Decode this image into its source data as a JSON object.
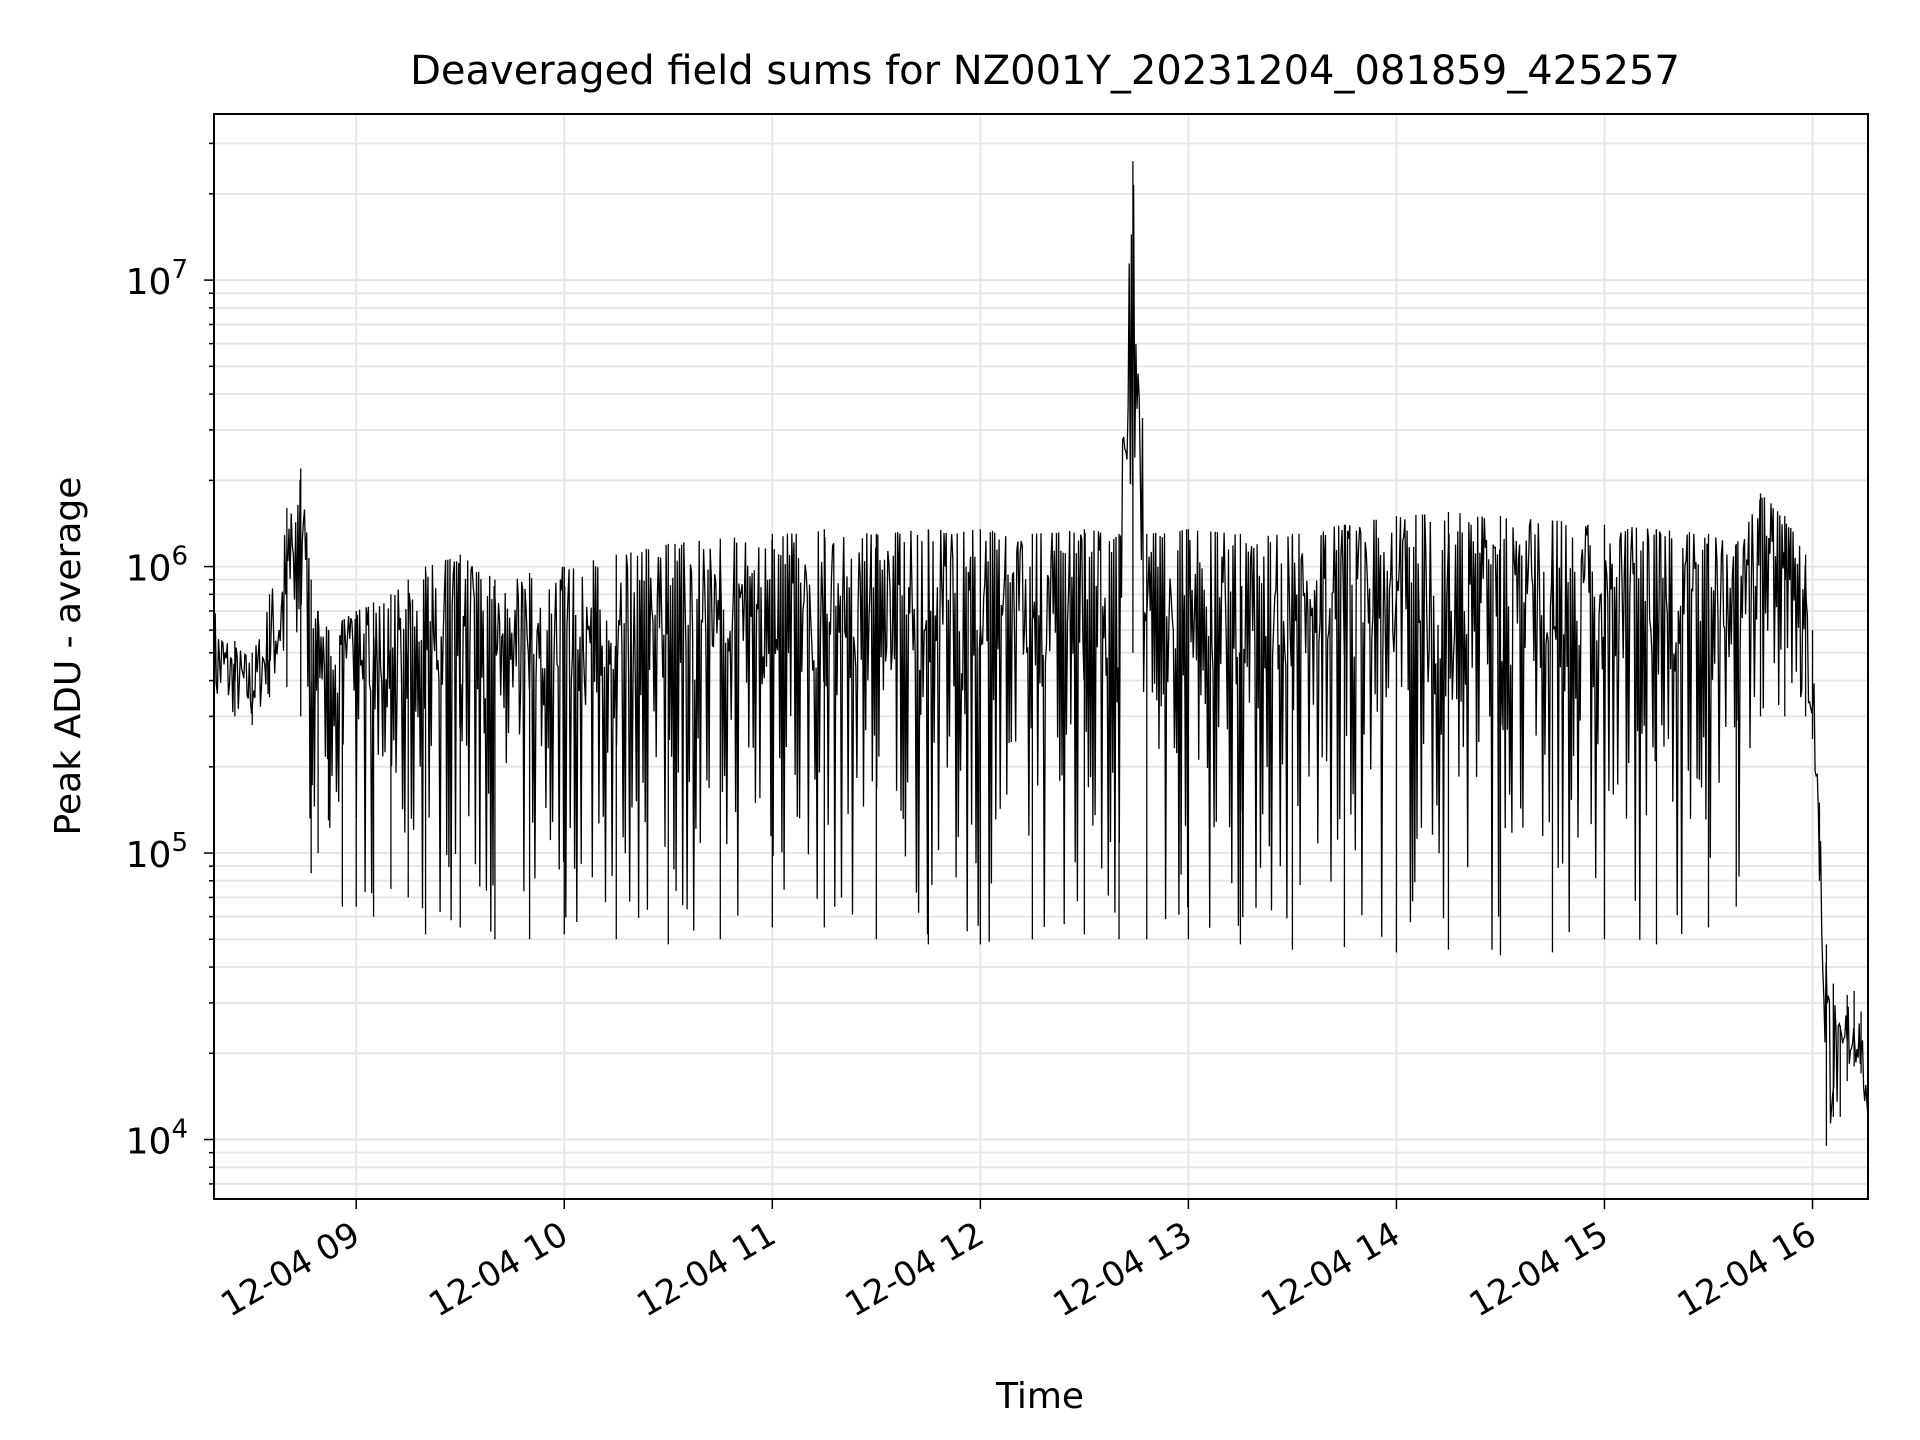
{
  "chart_data": {
    "type": "line",
    "title": "Deaveraged field sums for NZ001Y_20231204_081859_425257",
    "xlabel": "Time",
    "ylabel": "Peak ADU - average",
    "x_scale": "time",
    "y_scale": "log",
    "xlim": [
      "2023-12-04 08:18:59",
      "2023-12-04 16:16:00"
    ],
    "ylim": [
      6200,
      38000000
    ],
    "grid": true,
    "x_ticks": [
      "12-04 09",
      "12-04 10",
      "12-04 11",
      "12-04 12",
      "12-04 13",
      "12-04 14",
      "12-04 15",
      "12-04 16"
    ],
    "y_ticks": [
      {
        "value": 10000,
        "base": "10",
        "exp": "4"
      },
      {
        "value": 100000,
        "base": "10",
        "exp": "5"
      },
      {
        "value": 1000000,
        "base": "10",
        "exp": "6"
      },
      {
        "value": 10000000,
        "base": "10",
        "exp": "7"
      }
    ],
    "series": [
      {
        "color": "#000000",
        "x": [
          "2023-12-04 08:19",
          "2023-12-04 08:25",
          "2023-12-04 08:30",
          "2023-12-04 08:35",
          "2023-12-04 08:40",
          "2023-12-04 08:44",
          "2023-12-04 08:47",
          "2023-12-04 08:49",
          "2023-12-04 08:52",
          "2023-12-04 08:56",
          "2023-12-04 09:00",
          "2023-12-04 09:05",
          "2023-12-04 09:10",
          "2023-12-04 09:15",
          "2023-12-04 09:20",
          "2023-12-04 09:30",
          "2023-12-04 09:40",
          "2023-12-04 09:50",
          "2023-12-04 10:00",
          "2023-12-04 10:15",
          "2023-12-04 10:30",
          "2023-12-04 10:45",
          "2023-12-04 11:00",
          "2023-12-04 11:15",
          "2023-12-04 11:30",
          "2023-12-04 11:45",
          "2023-12-04 12:00",
          "2023-12-04 12:15",
          "2023-12-04 12:30",
          "2023-12-04 12:40",
          "2023-12-04 12:44",
          "2023-12-04 12:48",
          "2023-12-04 13:00",
          "2023-12-04 13:15",
          "2023-12-04 13:30",
          "2023-12-04 13:45",
          "2023-12-04 14:00",
          "2023-12-04 14:15",
          "2023-12-04 14:30",
          "2023-12-04 14:45",
          "2023-12-04 15:00",
          "2023-12-04 15:15",
          "2023-12-04 15:30",
          "2023-12-04 15:38",
          "2023-12-04 15:45",
          "2023-12-04 15:52",
          "2023-12-04 15:58",
          "2023-12-04 16:00",
          "2023-12-04 16:02",
          "2023-12-04 16:04",
          "2023-12-04 16:06",
          "2023-12-04 16:08",
          "2023-12-04 16:10",
          "2023-12-04 16:12",
          "2023-12-04 16:14",
          "2023-12-04 16:16"
        ],
        "y_upper": [
          750000,
          550000,
          500000,
          800000,
          1600000,
          2200000,
          900000,
          700000,
          600000,
          650000,
          700000,
          750000,
          800000,
          900000,
          1000000,
          1100000,
          900000,
          950000,
          1000000,
          1100000,
          1200000,
          1250000,
          1300000,
          1350000,
          1300000,
          1350000,
          1350000,
          1300000,
          1350000,
          1300000,
          26000000,
          1300000,
          1350000,
          1300000,
          1300000,
          1400000,
          1500000,
          1550000,
          1500000,
          1450000,
          1400000,
          1350000,
          1300000,
          1200000,
          1800000,
          1500000,
          1100000,
          600000,
          150000,
          48000,
          35000,
          25000,
          32000,
          33000,
          28000,
          12000
        ],
        "y_lower": [
          300000,
          300000,
          280000,
          350000,
          380000,
          300000,
          85000,
          100000,
          130000,
          65000,
          65000,
          60000,
          75000,
          70000,
          52000,
          55000,
          50000,
          50000,
          52000,
          50000,
          48000,
          50000,
          55000,
          55000,
          50000,
          48000,
          48000,
          50000,
          52000,
          50000,
          500000,
          50000,
          50000,
          48000,
          46000,
          47000,
          45000,
          46000,
          44000,
          45000,
          50000,
          48000,
          55000,
          65000,
          300000,
          300000,
          300000,
          250000,
          80000,
          9500,
          12000,
          12000,
          16000,
          18000,
          17000,
          10000
        ]
      }
    ]
  }
}
